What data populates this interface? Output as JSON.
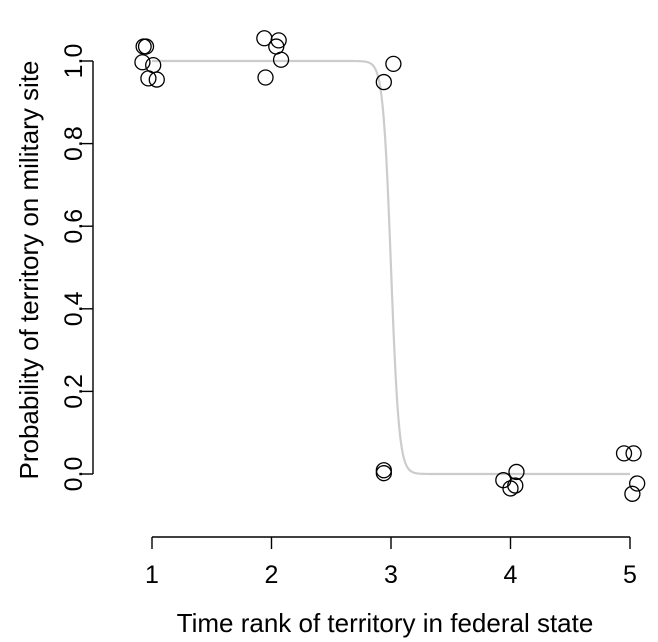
{
  "chart_data": {
    "type": "scatter",
    "title": "",
    "xlabel": "Time rank of territory in federal state",
    "ylabel": "Probability of territory on military site",
    "xlim": [
      1,
      5
    ],
    "ylim": [
      0,
      1
    ],
    "x_ticks": [
      "1",
      "2",
      "3",
      "4",
      "5"
    ],
    "y_ticks": [
      "0.0",
      "0.2",
      "0.4",
      "0.6",
      "0.8",
      "1.0"
    ],
    "grid": false,
    "legend": "none",
    "colors": {
      "points": "#000000",
      "curve": "#cccccc"
    },
    "fit_curve": {
      "model": "logistic",
      "midpoint": 3,
      "slope": 30,
      "x_range": [
        1,
        5
      ]
    },
    "points": [
      {
        "x": 0.93,
        "y": 1.035
      },
      {
        "x": 0.95,
        "y": 1.035
      },
      {
        "x": 0.92,
        "y": 0.997
      },
      {
        "x": 1.01,
        "y": 0.99
      },
      {
        "x": 0.97,
        "y": 0.958
      },
      {
        "x": 1.04,
        "y": 0.955
      },
      {
        "x": 1.94,
        "y": 1.055
      },
      {
        "x": 2.06,
        "y": 1.05
      },
      {
        "x": 2.04,
        "y": 1.035
      },
      {
        "x": 2.08,
        "y": 1.003
      },
      {
        "x": 1.95,
        "y": 0.96
      },
      {
        "x": 3.02,
        "y": 0.993
      },
      {
        "x": 2.94,
        "y": 0.949
      },
      {
        "x": 2.94,
        "y": 0.009
      },
      {
        "x": 2.94,
        "y": 0.002
      },
      {
        "x": 3.94,
        "y": -0.015
      },
      {
        "x": 4.05,
        "y": 0.005
      },
      {
        "x": 4.04,
        "y": -0.028
      },
      {
        "x": 4.0,
        "y": -0.035
      },
      {
        "x": 4.95,
        "y": 0.05
      },
      {
        "x": 5.03,
        "y": 0.05
      },
      {
        "x": 5.06,
        "y": -0.023
      },
      {
        "x": 5.02,
        "y": -0.048
      }
    ]
  }
}
